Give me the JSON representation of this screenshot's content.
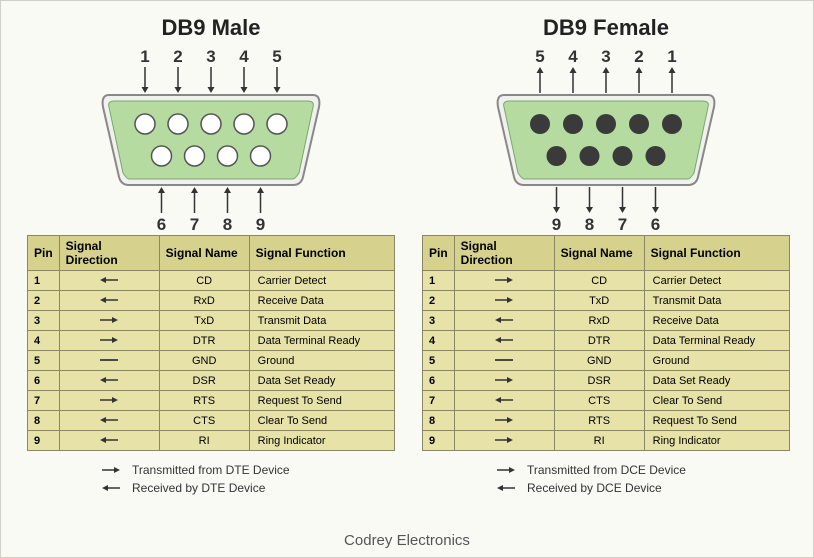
{
  "footer": "Codrey Electronics",
  "colors": {
    "background": "#fafaf5",
    "connector_body": "#b6dba1",
    "connector_shell_fill": "#f0f0ee",
    "connector_shell_stroke": "#888",
    "pin_male_fill": "#ffffff",
    "pin_female_fill": "#3a3a3a",
    "pin_stroke": "#555",
    "table_header_bg": "#d6d28e",
    "table_cell_bg": "#e6e2a8",
    "table_border": "#888866",
    "text": "#333333"
  },
  "typography": {
    "title_fontsize": 22,
    "title_weight": "bold",
    "pin_label_fontsize": 17,
    "table_header_fontsize": 12,
    "table_cell_fontsize": 11,
    "legend_fontsize": 12,
    "footer_fontsize": 15,
    "font_family": "Century Gothic"
  },
  "connector_geometry": {
    "shell_width": 220,
    "shell_height": 90,
    "top_row_pins": 5,
    "bottom_row_pins": 4,
    "pin_radius": 10,
    "pin_spacing": 33
  },
  "arrow_symbols": {
    "right": "→",
    "left": "←",
    "dash": "—"
  },
  "panels": [
    {
      "side": "left",
      "title": "DB9 Male",
      "pin_style": "male",
      "top_labels_ltr": [
        "1",
        "2",
        "3",
        "4",
        "5"
      ],
      "bottom_labels_ltr": [
        "6",
        "7",
        "8",
        "9"
      ],
      "arrow_dir_top": "down",
      "arrow_dir_bottom": "up",
      "table": {
        "columns": [
          "Pin",
          "Signal Direction",
          "Signal Name",
          "Signal Function"
        ],
        "rows": [
          {
            "pin": "1",
            "dir": "left",
            "name": "CD",
            "func": "Carrier Detect"
          },
          {
            "pin": "2",
            "dir": "left",
            "name": "RxD",
            "func": "Receive Data"
          },
          {
            "pin": "3",
            "dir": "right",
            "name": "TxD",
            "func": "Transmit Data"
          },
          {
            "pin": "4",
            "dir": "right",
            "name": "DTR",
            "func": "Data Terminal Ready"
          },
          {
            "pin": "5",
            "dir": "dash",
            "name": "GND",
            "func": "Ground"
          },
          {
            "pin": "6",
            "dir": "left",
            "name": "DSR",
            "func": "Data Set Ready"
          },
          {
            "pin": "7",
            "dir": "right",
            "name": "RTS",
            "func": "Request To Send"
          },
          {
            "pin": "8",
            "dir": "left",
            "name": "CTS",
            "func": "Clear To Send"
          },
          {
            "pin": "9",
            "dir": "left",
            "name": "RI",
            "func": "Ring Indicator"
          }
        ]
      },
      "legend": [
        {
          "dir": "right",
          "text": "Transmitted from DTE Device"
        },
        {
          "dir": "left",
          "text": "Received by DTE Device"
        }
      ]
    },
    {
      "side": "right",
      "title": "DB9 Female",
      "pin_style": "female",
      "top_labels_ltr": [
        "5",
        "4",
        "3",
        "2",
        "1"
      ],
      "bottom_labels_ltr": [
        "9",
        "8",
        "7",
        "6"
      ],
      "arrow_dir_top": "up",
      "arrow_dir_bottom": "down",
      "table": {
        "columns": [
          "Pin",
          "Signal Direction",
          "Signal Name",
          "Signal Function"
        ],
        "rows": [
          {
            "pin": "1",
            "dir": "right",
            "name": "CD",
            "func": "Carrier Detect"
          },
          {
            "pin": "2",
            "dir": "right",
            "name": "TxD",
            "func": "Transmit Data"
          },
          {
            "pin": "3",
            "dir": "left",
            "name": "RxD",
            "func": "Receive Data"
          },
          {
            "pin": "4",
            "dir": "left",
            "name": "DTR",
            "func": "Data Terminal Ready"
          },
          {
            "pin": "5",
            "dir": "dash",
            "name": "GND",
            "func": "Ground"
          },
          {
            "pin": "6",
            "dir": "right",
            "name": "DSR",
            "func": "Data Set Ready"
          },
          {
            "pin": "7",
            "dir": "left",
            "name": "CTS",
            "func": "Clear To Send"
          },
          {
            "pin": "8",
            "dir": "right",
            "name": "RTS",
            "func": "Request To Send"
          },
          {
            "pin": "9",
            "dir": "right",
            "name": "RI",
            "func": "Ring Indicator"
          }
        ]
      },
      "legend": [
        {
          "dir": "right",
          "text": "Transmitted from DCE Device"
        },
        {
          "dir": "left",
          "text": "Received by DCE Device"
        }
      ]
    }
  ]
}
